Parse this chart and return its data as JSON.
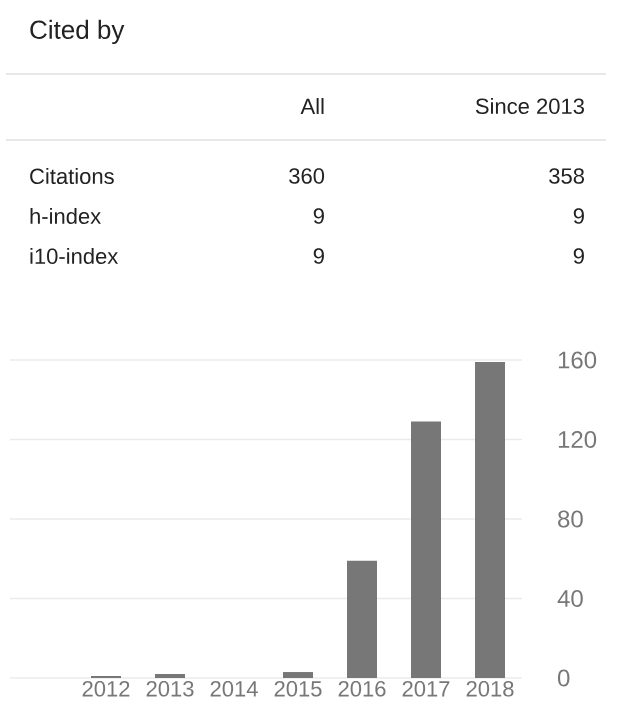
{
  "chart_data": [
    {
      "type": "other",
      "title": "Cited by",
      "annotations": [
        "All",
        "Since 2013",
        "Citations",
        "360",
        "358",
        "h-index",
        "9",
        "9",
        "i10-index",
        "9",
        "9"
      ]
    },
    {
      "type": "bar",
      "categories": [
        "2012",
        "2013",
        "2014",
        "2015",
        "2016",
        "2017",
        "2018"
      ],
      "values": [
        1,
        2,
        0,
        3,
        59,
        129,
        159
      ],
      "color": "#777777",
      "ylim": [
        0,
        160
      ],
      "yticks": [
        0,
        40,
        80,
        120,
        160
      ],
      "grid": "y"
    }
  ]
}
